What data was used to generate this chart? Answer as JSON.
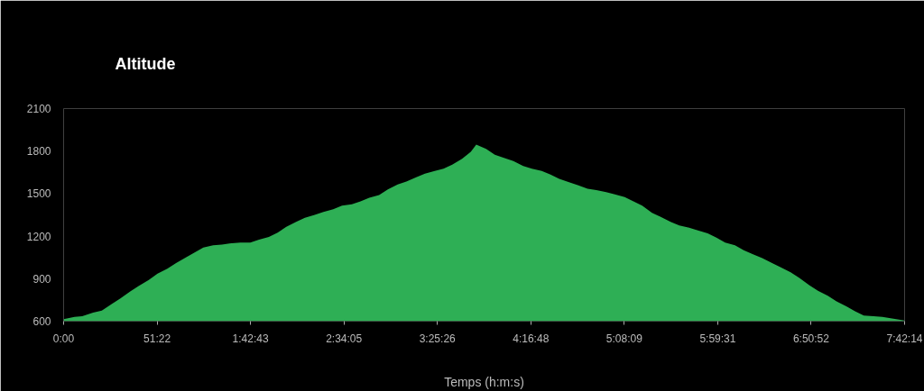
{
  "chart_data": {
    "type": "area",
    "title": "Altitude",
    "xlabel": "Temps (h:m:s)",
    "x": [
      0,
      6,
      10.2,
      16.2,
      21,
      26.4,
      31.2,
      36.6,
      41.4,
      46.8,
      51.6,
      57,
      61.8,
      67.2,
      72,
      76.8,
      82.2,
      87,
      92.4,
      97.2,
      102.6,
      107.4,
      112.8,
      117.6,
      122.4,
      127.8,
      132.6,
      138,
      142.8,
      148.2,
      153,
      158.4,
      163.2,
      168,
      173.4,
      178.2,
      183.6,
      188.4,
      193.8,
      198.6,
      204,
      208.8,
      213.6,
      219,
      223.8,
      226.8,
      232.2,
      237,
      242.4,
      247.2,
      252.6,
      257.4,
      262.8,
      267.6,
      272.4,
      277.8,
      282.6,
      288,
      292.8,
      298.2,
      303,
      308.4,
      313.2,
      318,
      323.4,
      328.2,
      333.6,
      338.4,
      343.8,
      348.6,
      354,
      358.8,
      363.6,
      369,
      373.8,
      379.2,
      384,
      389.4,
      394.2,
      399.6,
      404.4,
      409.8,
      414.6,
      420,
      424.8,
      430.2,
      435,
      439.8,
      445.2,
      450,
      462.2
    ],
    "series": [
      {
        "color": "#2eaf55",
        "values": [
          615,
          630,
          635,
          660,
          675,
          720,
          760,
          810,
          850,
          890,
          935,
          970,
          1010,
          1050,
          1085,
          1120,
          1135,
          1140,
          1150,
          1155,
          1155,
          1175,
          1195,
          1225,
          1265,
          1300,
          1330,
          1350,
          1370,
          1390,
          1415,
          1425,
          1445,
          1470,
          1490,
          1530,
          1565,
          1585,
          1615,
          1640,
          1660,
          1675,
          1705,
          1745,
          1795,
          1845,
          1815,
          1775,
          1750,
          1730,
          1695,
          1675,
          1660,
          1635,
          1605,
          1580,
          1560,
          1535,
          1525,
          1510,
          1495,
          1475,
          1445,
          1415,
          1365,
          1335,
          1300,
          1275,
          1260,
          1240,
          1220,
          1190,
          1155,
          1135,
          1100,
          1070,
          1045,
          1010,
          980,
          945,
          905,
          855,
          815,
          780,
          740,
          705,
          670,
          640,
          635,
          630,
          605
        ]
      }
    ],
    "xlim": [
      0,
      462.23
    ],
    "xticks": [
      {
        "value": 0,
        "label": "0:00"
      },
      {
        "value": 51.37,
        "label": "51:22"
      },
      {
        "value": 102.72,
        "label": "1:42:43"
      },
      {
        "value": 154.08,
        "label": "2:34:05"
      },
      {
        "value": 205.43,
        "label": "3:25:26"
      },
      {
        "value": 256.8,
        "label": "4:16:48"
      },
      {
        "value": 308.15,
        "label": "5:08:09"
      },
      {
        "value": 359.52,
        "label": "5:59:31"
      },
      {
        "value": 410.87,
        "label": "6:50:52"
      },
      {
        "value": 462.23,
        "label": "7:42:14"
      }
    ],
    "ylim": [
      600,
      2100
    ],
    "yticks": [
      600,
      900,
      1200,
      1500,
      1800,
      2100
    ],
    "grid": false
  }
}
